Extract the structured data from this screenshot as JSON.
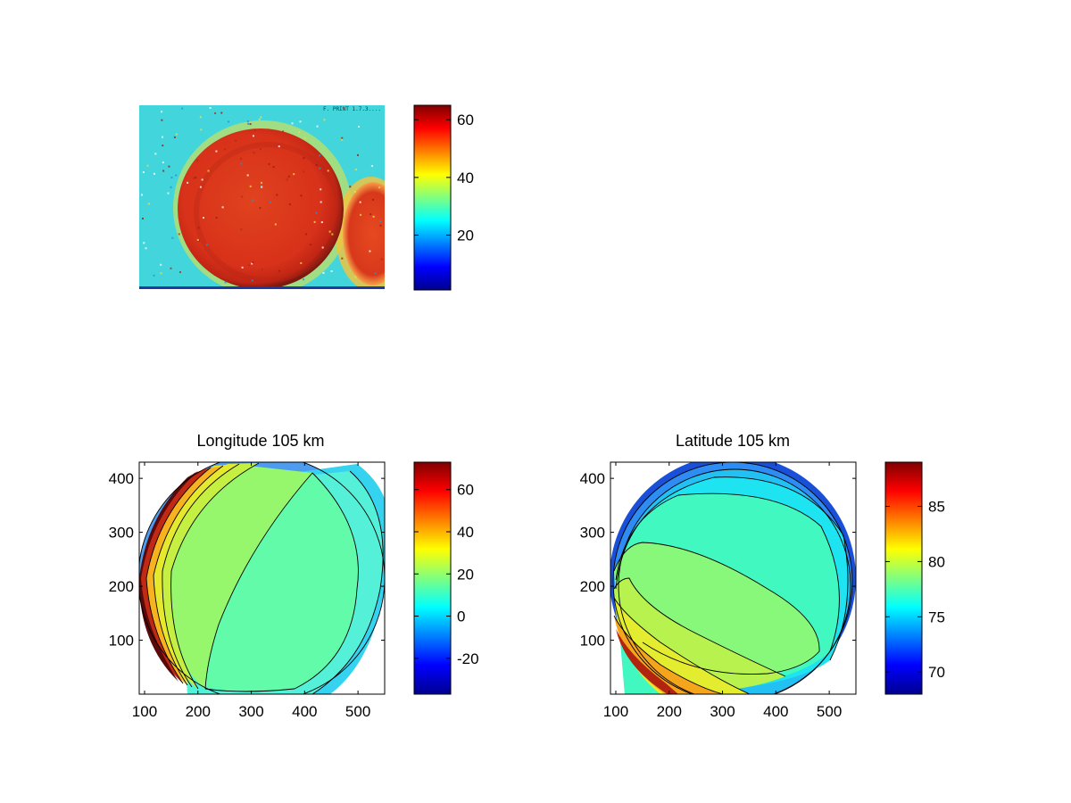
{
  "figure": {
    "background": "#ffffff",
    "colormap": "jet",
    "panels": [
      {
        "id": "image",
        "title": ""
      },
      {
        "id": "longitude",
        "title": "Longitude 105 km"
      },
      {
        "id": "latitude",
        "title": "Latitude 105 km"
      }
    ]
  },
  "image_panel": {
    "stamp_text": "F. PRINT 1.7.3.... 2.04",
    "description_colors": {
      "background": "#3ad1e6",
      "disk": "#d9321d",
      "limb_dark": "#8a1d12"
    }
  },
  "chart_data": [
    {
      "type": "heatmap",
      "title": "",
      "xlabel": "",
      "ylabel": "",
      "colorbar": {
        "range": [
          1,
          65
        ],
        "ticks": [
          20,
          40,
          60
        ],
        "tick_labels": [
          "20",
          "40",
          "60"
        ]
      },
      "axes_visible": false,
      "content": "false-color camera image: bright circular disk (~60) on ~28 background, second partial disk at right edge"
    },
    {
      "type": "heatmap",
      "subtype": "filled-contour",
      "title": "Longitude 105 km",
      "xlabel": "",
      "ylabel": "",
      "xlim": [
        90,
        550
      ],
      "ylim": [
        0,
        430
      ],
      "x_ticks": [
        100,
        200,
        300,
        400,
        500
      ],
      "x_tick_labels": [
        "100",
        "200",
        "300",
        "400",
        "500"
      ],
      "y_ticks": [
        100,
        200,
        300,
        400
      ],
      "y_tick_labels": [
        "100",
        "200",
        "300",
        "400"
      ],
      "disk": {
        "cx": 355,
        "cy": 205,
        "r": 225
      },
      "colorbar": {
        "range": [
          -37,
          73
        ],
        "ticks": [
          -20,
          0,
          20,
          40,
          60
        ],
        "tick_labels": [
          "-20",
          "0",
          "20",
          "40",
          "60"
        ]
      },
      "levels": [
        {
          "value": 5,
          "region": "outer-right band"
        },
        {
          "value": 8,
          "region": "right band"
        },
        {
          "value": 12,
          "region": "center-right"
        },
        {
          "value": 22,
          "region": "center-left"
        },
        {
          "value": 32,
          "region": "left band"
        },
        {
          "value": 40,
          "region": "left band"
        },
        {
          "value": 55,
          "region": "far-left limb"
        },
        {
          "value": 70,
          "region": "limb edge"
        }
      ]
    },
    {
      "type": "heatmap",
      "subtype": "filled-contour",
      "title": "Latitude 105 km",
      "xlabel": "",
      "ylabel": "",
      "xlim": [
        90,
        550
      ],
      "ylim": [
        0,
        430
      ],
      "x_ticks": [
        100,
        200,
        300,
        400,
        500
      ],
      "x_tick_labels": [
        "100",
        "200",
        "300",
        "400",
        "500"
      ],
      "y_ticks": [
        100,
        200,
        300,
        400
      ],
      "y_tick_labels": [
        "100",
        "200",
        "300",
        "400"
      ],
      "disk": {
        "cx": 355,
        "cy": 205,
        "r": 225
      },
      "colorbar": {
        "range": [
          68,
          89
        ],
        "ticks": [
          70,
          75,
          80,
          85
        ],
        "tick_labels": [
          "70",
          "75",
          "80",
          "85"
        ]
      },
      "levels": [
        {
          "value": 70,
          "region": "top limb"
        },
        {
          "value": 73,
          "region": "top band"
        },
        {
          "value": 75,
          "region": "upper band"
        },
        {
          "value": 76.5,
          "region": "upper-center"
        },
        {
          "value": 78.5,
          "region": "lower-center"
        },
        {
          "value": 80,
          "region": "lower-left band"
        },
        {
          "value": 82,
          "region": "lower-left band"
        },
        {
          "value": 86,
          "region": "bottom-left limb"
        }
      ]
    }
  ]
}
